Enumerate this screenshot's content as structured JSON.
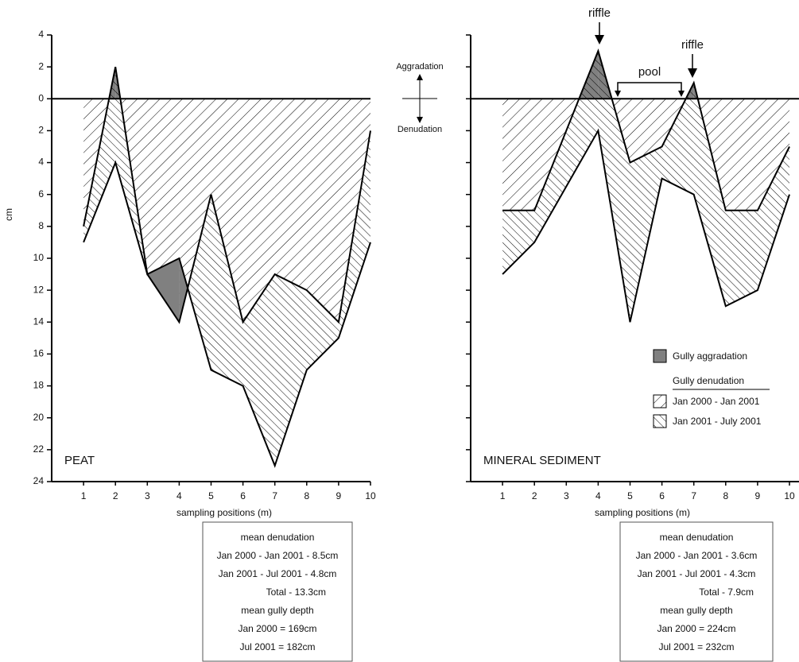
{
  "middle": {
    "up": "Aggradation",
    "down": "Denudation"
  },
  "legend": {
    "aggradation": "Gully aggradation",
    "denudation_title": "Gully denudation",
    "period_1": "Jan 2000 - Jan 2001",
    "period_2": "Jan 2001 - July 2001",
    "aggradation_color": "#808080"
  },
  "chart_data": [
    {
      "type": "area",
      "label": "PEAT",
      "xlabel": "sampling positions (m)",
      "ylabel": "cm",
      "x": [
        1,
        2,
        3,
        4,
        5,
        6,
        7,
        8,
        9,
        10
      ],
      "xticks": [
        1,
        2,
        3,
        4,
        5,
        6,
        7,
        8,
        9,
        10
      ],
      "xlim": [
        0,
        10
      ],
      "ylim": [
        -24,
        4
      ],
      "yticks": [
        4,
        2,
        0,
        {
          "value": -2,
          "label": "2"
        },
        {
          "value": -4,
          "label": "4"
        },
        {
          "value": -6,
          "label": "6"
        },
        {
          "value": -8,
          "label": "8"
        },
        {
          "value": -10,
          "label": "10"
        },
        {
          "value": -12,
          "label": "12"
        },
        {
          "value": -14,
          "label": "14"
        },
        {
          "value": -16,
          "label": "16"
        },
        {
          "value": -18,
          "label": "18"
        },
        {
          "value": -20,
          "label": "20"
        },
        {
          "value": -22,
          "label": "22"
        },
        {
          "value": -24,
          "label": "24"
        }
      ],
      "series": [
        {
          "color": "#000000",
          "values": [
            -8,
            2,
            -11,
            -14,
            -6,
            -14,
            -11,
            -12,
            -14,
            -2
          ]
        },
        {
          "color": "#000000",
          "values": [
            -9,
            -4,
            -11,
            -10,
            -17,
            -18,
            -23,
            -17,
            -15,
            -9
          ]
        }
      ],
      "stats": [
        "mean denudation",
        "Jan 2000 - Jan 2001 - 8.5cm",
        "Jan 2001 - Jul 2001 - 4.8cm",
        "Total  - 13.3cm",
        "mean gully depth",
        "Jan 2000 = 169cm",
        "Jul 2001 = 182cm"
      ]
    },
    {
      "type": "area",
      "label": "MINERAL SEDIMENT",
      "xlabel": "sampling positions (m)",
      "x": [
        1,
        2,
        3,
        4,
        5,
        6,
        7,
        8,
        9,
        10
      ],
      "xticks": [
        1,
        2,
        3,
        4,
        5,
        6,
        7,
        8,
        9,
        10
      ],
      "xlim": [
        0,
        10
      ],
      "ylim": [
        -24,
        4
      ],
      "ytick_labels": false,
      "yticks": [
        4,
        2,
        0,
        -2,
        -4,
        -6,
        -8,
        -10,
        -12,
        -14,
        -16,
        -18,
        -20,
        -22,
        -24
      ],
      "series": [
        {
          "color": "#000000",
          "values": [
            -7,
            -7,
            -2,
            3,
            -4,
            -3,
            1,
            -7,
            -7,
            -3
          ]
        },
        {
          "color": "#000000",
          "values": [
            -11,
            -9,
            -5.5,
            -2,
            -14,
            -5,
            -6,
            -13,
            -12,
            -6
          ]
        }
      ],
      "annotations": [
        "riffle",
        "riffle",
        "pool"
      ],
      "stats": [
        "mean denudation",
        "Jan 2000 - Jan 2001 - 3.6cm",
        "Jan 2001 - Jul 2001 - 4.3cm",
        "Total  - 7.9cm",
        "mean gully depth",
        "Jan 2000 = 224cm",
        "Jul 2001 = 232cm"
      ]
    }
  ]
}
